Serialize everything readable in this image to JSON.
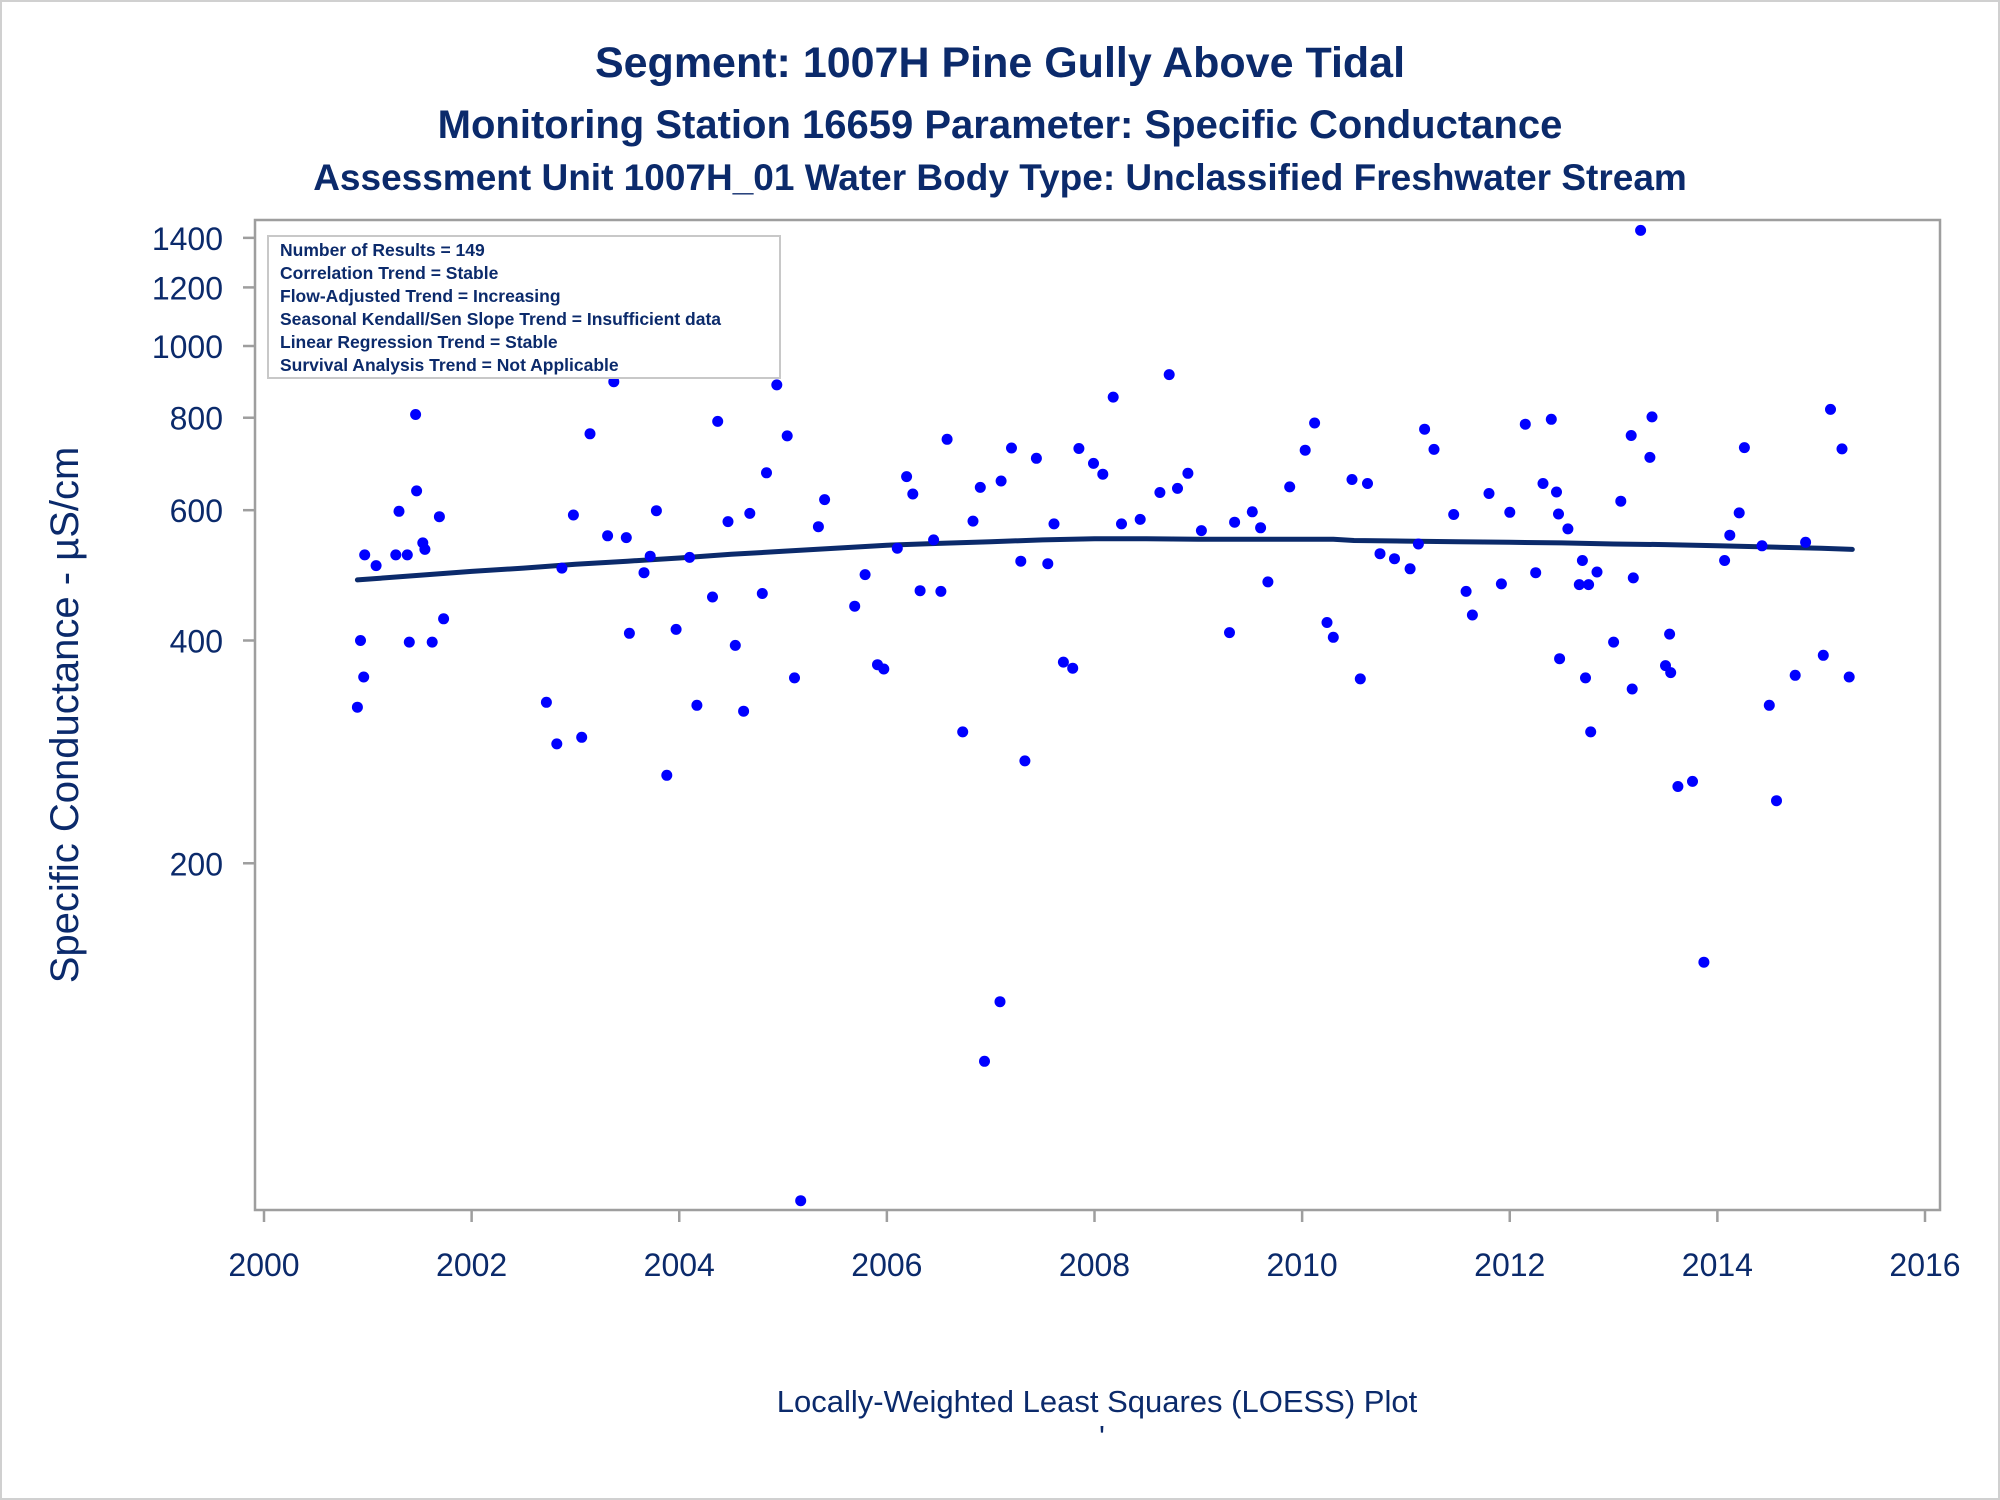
{
  "colors": {
    "text": "#0b2a6b",
    "point": "#0000ff",
    "loess": "#0b2a6b",
    "frame": "#9e9e9e"
  },
  "titles": {
    "line1": "Segment: 1007H  Pine Gully Above Tidal",
    "line2": "Monitoring Station 16659 Parameter: Specific Conductance",
    "line3": "Assessment Unit 1007H_01   Water Body Type: Unclassified Freshwater Stream"
  },
  "footnote": "Locally-Weighted Least Squares (LOESS) Plot",
  "footnote_mark": "'",
  "stats_box": [
    "Number of Results = 149",
    "Correlation Trend = Stable",
    "Flow-Adjusted Trend = Increasing",
    "Seasonal Kendall/Sen Slope Trend = Insufficient data",
    "Linear Regression Trend = Stable",
    "Survival Analysis Trend = Not Applicable"
  ],
  "chart_data": {
    "type": "scatter",
    "ylabel": "Specific Conductance -  µS/cm",
    "xlabel": "",
    "y_scale": "log",
    "xlim": [
      2000,
      2016
    ],
    "ylim": [
      68,
      1480
    ],
    "x_ticks": [
      2000,
      2002,
      2004,
      2006,
      2008,
      2010,
      2012,
      2014,
      2016
    ],
    "y_ticks": [
      200,
      400,
      600,
      800,
      1000,
      1200,
      1400
    ],
    "grid": false,
    "legend": "none",
    "series": [
      {
        "role": "observations",
        "points": [
          [
            2000.9,
            325
          ],
          [
            2000.93,
            400
          ],
          [
            2000.96,
            357
          ],
          [
            2000.97,
            522
          ],
          [
            2001.08,
            505
          ],
          [
            2001.27,
            522
          ],
          [
            2001.3,
            598
          ],
          [
            2001.38,
            522
          ],
          [
            2001.4,
            398
          ],
          [
            2001.46,
            808
          ],
          [
            2001.47,
            637
          ],
          [
            2001.53,
            542
          ],
          [
            2001.55,
            531
          ],
          [
            2001.62,
            398
          ],
          [
            2001.69,
            588
          ],
          [
            2001.73,
            428
          ],
          [
            2002.72,
            330
          ],
          [
            2002.82,
            290
          ],
          [
            2002.87,
            501
          ],
          [
            2002.98,
            591
          ],
          [
            2003.06,
            296
          ],
          [
            2003.14,
            761
          ],
          [
            2003.31,
            554
          ],
          [
            2003.37,
            895
          ],
          [
            2003.49,
            551
          ],
          [
            2003.52,
            409
          ],
          [
            2003.66,
            494
          ],
          [
            2003.72,
            520
          ],
          [
            2003.78,
            599
          ],
          [
            2003.88,
            263
          ],
          [
            2003.97,
            414
          ],
          [
            2004.1,
            518
          ],
          [
            2004.17,
            327
          ],
          [
            2004.32,
            458
          ],
          [
            2004.37,
            791
          ],
          [
            2004.47,
            579
          ],
          [
            2004.54,
            394
          ],
          [
            2004.62,
            321
          ],
          [
            2004.68,
            594
          ],
          [
            2004.8,
            463
          ],
          [
            2004.84,
            674
          ],
          [
            2004.94,
            886
          ],
          [
            2005.04,
            756
          ],
          [
            2005.11,
            356
          ],
          [
            2005.17,
            70
          ],
          [
            2005.34,
            570
          ],
          [
            2005.4,
            620
          ],
          [
            2005.69,
            445
          ],
          [
            2005.79,
            491
          ],
          [
            2005.91,
            371
          ],
          [
            2005.97,
            366
          ],
          [
            2006.1,
            533
          ],
          [
            2006.19,
            666
          ],
          [
            2006.25,
            631
          ],
          [
            2006.32,
            467
          ],
          [
            2006.45,
            547
          ],
          [
            2006.52,
            466
          ],
          [
            2006.58,
            748
          ],
          [
            2006.73,
            301
          ],
          [
            2006.83,
            580
          ],
          [
            2006.9,
            644
          ],
          [
            2006.94,
            108
          ],
          [
            2007.09,
            130
          ],
          [
            2007.1,
            657
          ],
          [
            2007.2,
            728
          ],
          [
            2007.29,
            512
          ],
          [
            2007.33,
            275
          ],
          [
            2007.44,
            705
          ],
          [
            2007.55,
            508
          ],
          [
            2007.61,
            575
          ],
          [
            2007.7,
            374
          ],
          [
            2007.79,
            367
          ],
          [
            2007.85,
            727
          ],
          [
            2007.99,
            694
          ],
          [
            2008.08,
            671
          ],
          [
            2008.18,
            853
          ],
          [
            2008.26,
            575
          ],
          [
            2008.44,
            583
          ],
          [
            2008.63,
            634
          ],
          [
            2008.72,
            915
          ],
          [
            2008.8,
            642
          ],
          [
            2008.9,
            673
          ],
          [
            2009.03,
            563
          ],
          [
            2009.3,
            410
          ],
          [
            2009.35,
            578
          ],
          [
            2009.52,
            597
          ],
          [
            2009.6,
            568
          ],
          [
            2009.67,
            480
          ],
          [
            2009.88,
            645
          ],
          [
            2010.03,
            723
          ],
          [
            2010.12,
            787
          ],
          [
            2010.24,
            423
          ],
          [
            2010.3,
            404
          ],
          [
            2010.48,
            660
          ],
          [
            2010.56,
            355
          ],
          [
            2010.63,
            652
          ],
          [
            2010.75,
            524
          ],
          [
            2010.89,
            516
          ],
          [
            2011.04,
            500
          ],
          [
            2011.12,
            540
          ],
          [
            2011.18,
            772
          ],
          [
            2011.27,
            725
          ],
          [
            2011.46,
            592
          ],
          [
            2011.58,
            466
          ],
          [
            2011.64,
            433
          ],
          [
            2011.8,
            632
          ],
          [
            2011.92,
            477
          ],
          [
            2012.0,
            596
          ],
          [
            2012.15,
            784
          ],
          [
            2012.25,
            494
          ],
          [
            2012.32,
            652
          ],
          [
            2012.4,
            796
          ],
          [
            2012.45,
            635
          ],
          [
            2012.47,
            593
          ],
          [
            2012.48,
            378
          ],
          [
            2012.56,
            566
          ],
          [
            2012.67,
            476
          ],
          [
            2012.7,
            513
          ],
          [
            2012.73,
            356
          ],
          [
            2012.76,
            476
          ],
          [
            2012.78,
            301
          ],
          [
            2012.84,
            495
          ],
          [
            2013.0,
            398
          ],
          [
            2013.07,
            617
          ],
          [
            2013.17,
            757
          ],
          [
            2013.18,
            344
          ],
          [
            2013.19,
            486
          ],
          [
            2013.26,
            1433
          ],
          [
            2013.35,
            707
          ],
          [
            2013.37,
            802
          ],
          [
            2013.5,
            370
          ],
          [
            2013.54,
            408
          ],
          [
            2013.55,
            362
          ],
          [
            2013.62,
            254
          ],
          [
            2013.76,
            258
          ],
          [
            2013.87,
            147
          ],
          [
            2014.07,
            513
          ],
          [
            2014.12,
            555
          ],
          [
            2014.21,
            595
          ],
          [
            2014.26,
            729
          ],
          [
            2014.43,
            537
          ],
          [
            2014.5,
            327
          ],
          [
            2014.57,
            243
          ],
          [
            2014.75,
            359
          ],
          [
            2014.85,
            543
          ],
          [
            2015.02,
            382
          ],
          [
            2015.09,
            821
          ],
          [
            2015.2,
            726
          ],
          [
            2015.27,
            357
          ]
        ]
      },
      {
        "role": "loess",
        "points": [
          [
            2000.9,
            483
          ],
          [
            2001.5,
            490
          ],
          [
            2002.0,
            496
          ],
          [
            2002.5,
            501
          ],
          [
            2003.0,
            507
          ],
          [
            2003.5,
            512
          ],
          [
            2004.0,
            517
          ],
          [
            2004.5,
            523
          ],
          [
            2005.0,
            528
          ],
          [
            2005.5,
            533
          ],
          [
            2006.0,
            538
          ],
          [
            2006.5,
            541
          ],
          [
            2007.0,
            544
          ],
          [
            2007.5,
            547
          ],
          [
            2008.0,
            549
          ],
          [
            2008.5,
            549
          ],
          [
            2009.0,
            548
          ],
          [
            2009.5,
            548
          ],
          [
            2010.0,
            548
          ],
          [
            2010.3,
            548
          ],
          [
            2010.5,
            546
          ],
          [
            2011.0,
            545
          ],
          [
            2011.5,
            544
          ],
          [
            2012.0,
            543
          ],
          [
            2012.5,
            542
          ],
          [
            2013.0,
            540
          ],
          [
            2013.5,
            539
          ],
          [
            2014.0,
            537
          ],
          [
            2014.5,
            535
          ],
          [
            2015.0,
            533
          ],
          [
            2015.3,
            531
          ]
        ]
      }
    ]
  }
}
